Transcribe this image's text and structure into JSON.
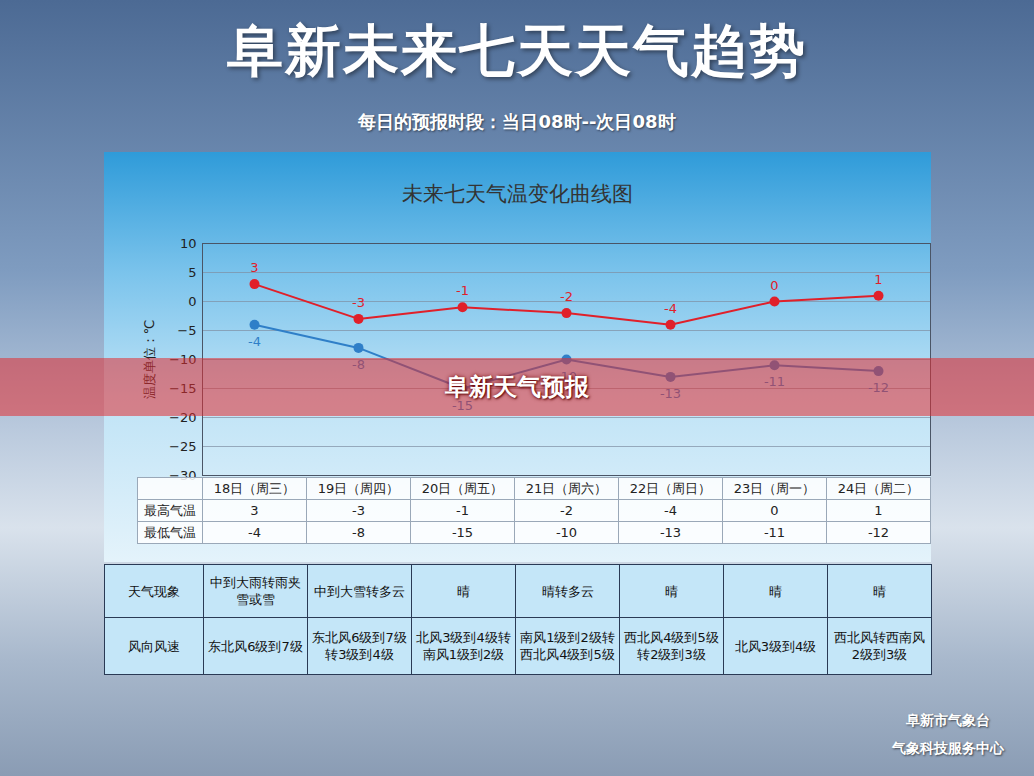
{
  "header": {
    "title": "阜新未来七天天气趋势",
    "subtitle": "每日的预报时段：当日08时--次日08时"
  },
  "chart_data": {
    "type": "line",
    "title": "未来七天气温变化曲线图",
    "ylabel": "温度单位：℃",
    "categories": [
      "18日（周三）",
      "19日（周四）",
      "20日（周五）",
      "21日（周六）",
      "22日（周日）",
      "23日（周一）",
      "24日（周二）"
    ],
    "series": [
      {
        "name": "最高气温",
        "color": "#e0202a",
        "marker": "circle",
        "values": [
          3,
          -3,
          -1,
          -2,
          -4,
          0,
          1
        ]
      },
      {
        "name": "最低气温",
        "color": "#2f7fc8",
        "marker": "circle",
        "values": [
          -4,
          -8,
          -15,
          -10,
          -13,
          -11,
          -12
        ]
      }
    ],
    "ylim": [
      -30,
      10
    ],
    "yticks": [
      10,
      5,
      0,
      -5,
      -10,
      -15,
      -20,
      -25,
      -30
    ],
    "grid": true,
    "data_labels": true
  },
  "weather_table": {
    "rows": [
      {
        "label": "天气现象",
        "cells": [
          "中到大雨转雨夹雪或雪",
          "中到大雪转多云",
          "晴",
          "晴转多云",
          "晴",
          "晴",
          "晴"
        ]
      },
      {
        "label": "风向风速",
        "cells": [
          "东北风6级到7级",
          "东北风6级到7级转3级到4级",
          "北风3级到4级转南风1级到2级",
          "南风1级到2级转西北风4级到5级",
          "西北风4级到5级转2级到3级",
          "北风3级到4级",
          "西北风转西南风2级到3级"
        ]
      }
    ]
  },
  "banner": "阜新天气预报",
  "footer": [
    "阜新市气象台",
    "气象科技服务中心"
  ]
}
